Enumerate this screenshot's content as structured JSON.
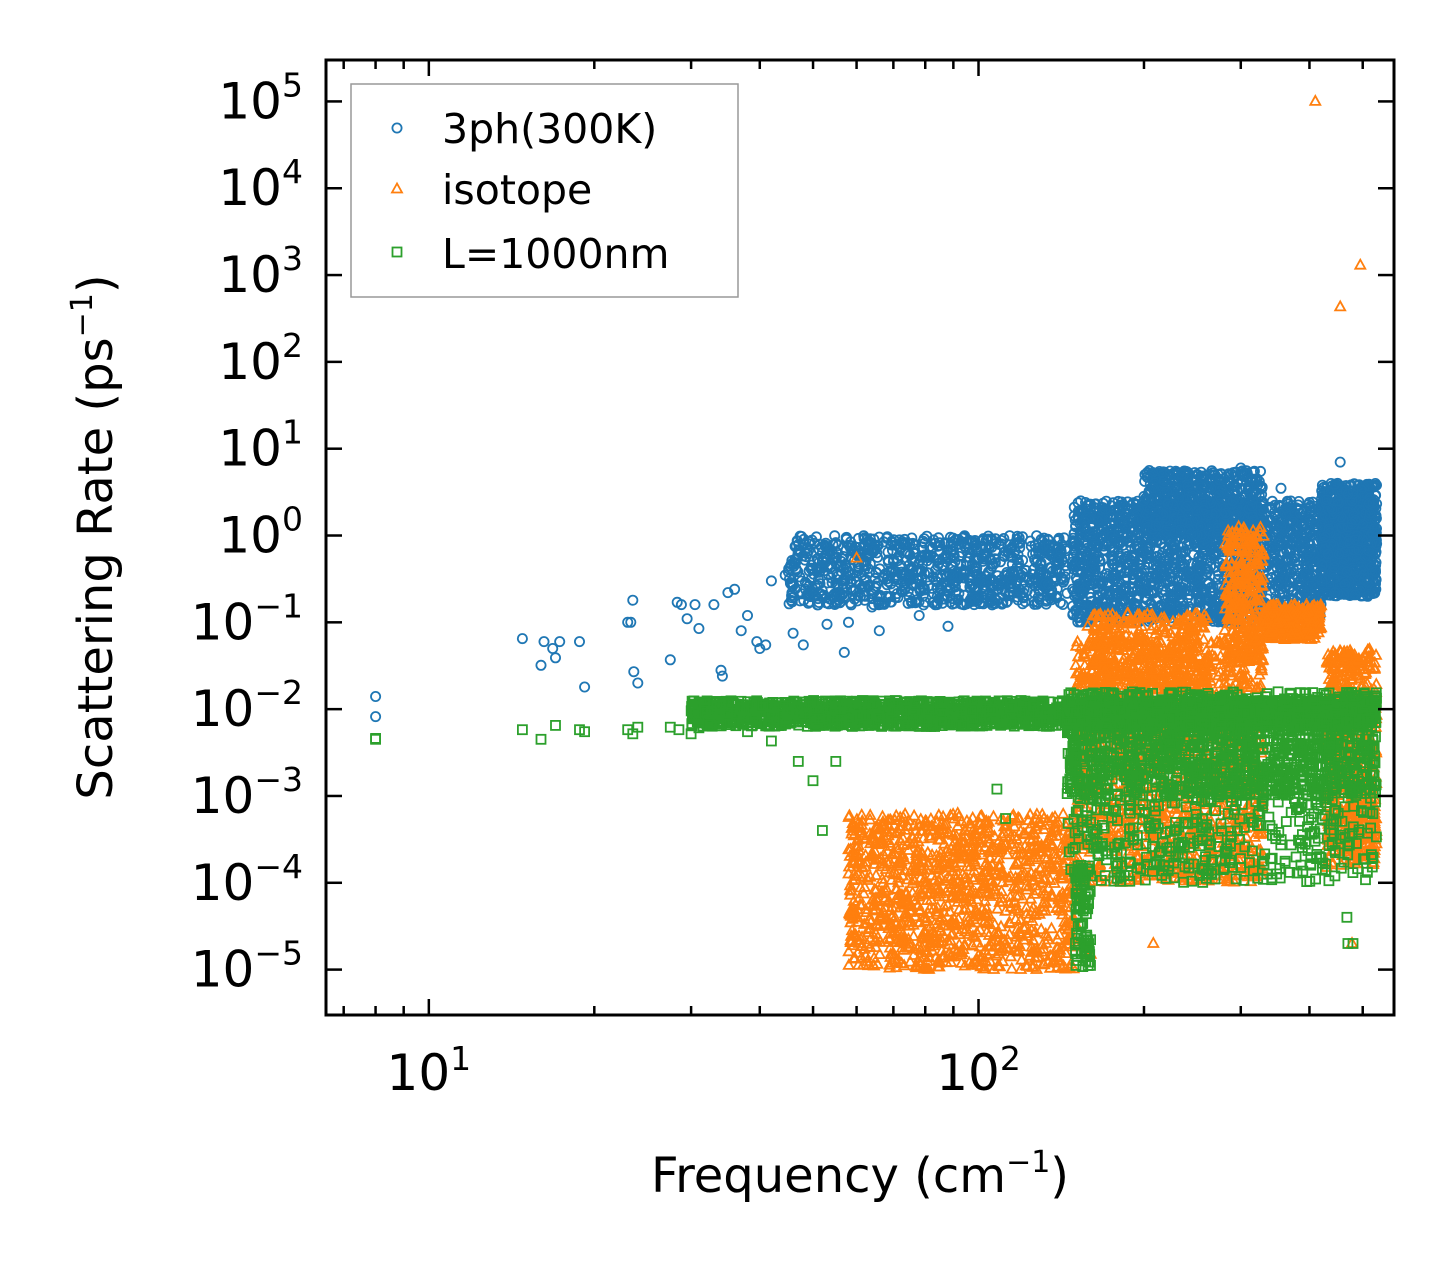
{
  "chart_data": {
    "type": "scatter",
    "xscale": "log",
    "yscale": "log",
    "xlim": [
      6.5,
      570
    ],
    "ylim": [
      3e-06,
      300000
    ],
    "xlabel": "Frequency (cm",
    "xlabel_sup": "−1",
    "xlabel_end": ")",
    "ylabel": "Scattering Rate (ps",
    "ylabel_sup": "−1",
    "ylabel_end": ")",
    "x_major_ticks": [
      {
        "value": 10,
        "base": "10",
        "exp": "1"
      },
      {
        "value": 100,
        "base": "10",
        "exp": "2"
      }
    ],
    "y_major_ticks": [
      {
        "value": 100000.0,
        "base": "10",
        "exp": "5"
      },
      {
        "value": 10000.0,
        "base": "10",
        "exp": "4"
      },
      {
        "value": 1000.0,
        "base": "10",
        "exp": "3"
      },
      {
        "value": 100.0,
        "base": "10",
        "exp": "2"
      },
      {
        "value": 10.0,
        "base": "10",
        "exp": "1"
      },
      {
        "value": 1.0,
        "base": "10",
        "exp": "0"
      },
      {
        "value": 0.1,
        "base": "10",
        "exp": "−1"
      },
      {
        "value": 0.01,
        "base": "10",
        "exp": "−2"
      },
      {
        "value": 0.001,
        "base": "10",
        "exp": "−3"
      },
      {
        "value": 0.0001,
        "base": "10",
        "exp": "−4"
      },
      {
        "value": 1e-05,
        "base": "10",
        "exp": "−5"
      }
    ],
    "legend_position": "top-left",
    "series": [
      {
        "name": "3ph(300K)",
        "color": "#1f77b4",
        "marker": "circle",
        "points": [
          [
            8.0,
            0.014
          ],
          [
            8.0,
            0.0082
          ],
          [
            14.8,
            0.065
          ],
          [
            16.0,
            0.032
          ],
          [
            16.2,
            0.06
          ],
          [
            16.8,
            0.05
          ],
          [
            17.0,
            0.039
          ],
          [
            17.3,
            0.06
          ],
          [
            18.8,
            0.06
          ],
          [
            19.2,
            0.018
          ],
          [
            23.0,
            0.1
          ],
          [
            23.3,
            0.1
          ],
          [
            23.5,
            0.18
          ],
          [
            23.6,
            0.027
          ],
          [
            24.0,
            0.02
          ],
          [
            27.5,
            0.037
          ],
          [
            28.3,
            0.17
          ],
          [
            28.8,
            0.16
          ],
          [
            29.5,
            0.11
          ],
          [
            30.5,
            0.16
          ],
          [
            31.0,
            0.085
          ],
          [
            33.0,
            0.16
          ],
          [
            34.0,
            0.028
          ],
          [
            34.2,
            0.024
          ],
          [
            35.0,
            0.22
          ],
          [
            36.0,
            0.24
          ],
          [
            37.0,
            0.08
          ],
          [
            38.0,
            0.12
          ],
          [
            39.5,
            0.06
          ],
          [
            40.0,
            0.05
          ],
          [
            41.0,
            0.055
          ],
          [
            42.0,
            0.3
          ],
          [
            44.5,
            0.35
          ],
          [
            46.0,
            0.075
          ],
          [
            48.0,
            0.055
          ],
          [
            50.0,
            0.2
          ],
          [
            52.0,
            0.5
          ],
          [
            53.0,
            0.095
          ],
          [
            55.0,
            0.28
          ],
          [
            57.0,
            0.045
          ],
          [
            58.0,
            0.1
          ],
          [
            60.0,
            0.6
          ],
          [
            62.0,
            0.3
          ],
          [
            64.0,
            0.15
          ],
          [
            66.0,
            0.08
          ],
          [
            68.0,
            0.2
          ],
          [
            70.0,
            0.5
          ],
          [
            72.0,
            0.7
          ],
          [
            75.0,
            0.4
          ],
          [
            78.0,
            0.12
          ],
          [
            80.0,
            0.6
          ],
          [
            84.0,
            0.25
          ],
          [
            88.0,
            0.09
          ],
          [
            92.0,
            0.9
          ],
          [
            95.0,
            0.45
          ],
          [
            100.0,
            0.35
          ],
          [
            105.0,
            0.2
          ],
          [
            110.0,
            0.8
          ],
          [
            118.0,
            0.6
          ],
          [
            125.0,
            0.3
          ],
          [
            130.0,
            0.9
          ],
          [
            140.0,
            0.55
          ],
          [
            150.0,
            1.5
          ],
          [
            160.0,
            0.4
          ],
          [
            170.0,
            2.0
          ],
          [
            180.0,
            1.1
          ],
          [
            190.0,
            0.5
          ],
          [
            200.0,
            2.5
          ],
          [
            210.0,
            1.3
          ],
          [
            220.0,
            3.2
          ],
          [
            230.0,
            0.6
          ],
          [
            240.0,
            2.2
          ],
          [
            250.0,
            1.0
          ],
          [
            260.0,
            3.8
          ],
          [
            270.0,
            1.8
          ],
          [
            280.0,
            4.5
          ],
          [
            290.0,
            2.5
          ],
          [
            300.0,
            6.0
          ],
          [
            310.0,
            1.2
          ],
          [
            320.0,
            3.0
          ],
          [
            330.0,
            2.0
          ],
          [
            340.0,
            1.5
          ],
          [
            355.0,
            3.5
          ],
          [
            370.0,
            2.5
          ],
          [
            385.0,
            1.8
          ],
          [
            400.0,
            0.6
          ],
          [
            420.0,
            0.4
          ],
          [
            440.0,
            2.0
          ],
          [
            455.0,
            7.0
          ],
          [
            470.0,
            3.0
          ],
          [
            485.0,
            1.5
          ],
          [
            500.0,
            0.9
          ],
          [
            515.0,
            1.8
          ],
          [
            525.0,
            1.2
          ],
          [
            530.0,
            0.8
          ]
        ],
        "clusters": [
          {
            "x": [
              45,
              145
            ],
            "ylog": [
              -0.8,
              0.0
            ],
            "n": 900
          },
          {
            "x": [
              148,
              420
            ],
            "ylog": [
              -1.0,
              0.4
            ],
            "n": 1800
          },
          {
            "x": [
              200,
              330
            ],
            "ylog": [
              0.0,
              0.75
            ],
            "n": 600
          },
          {
            "x": [
              420,
              530
            ],
            "ylog": [
              -0.7,
              0.6
            ],
            "n": 900
          }
        ]
      },
      {
        "name": "isotope",
        "color": "#ff7f0e",
        "marker": "triangle",
        "points": [
          [
            60.0,
            0.55
          ],
          [
            158.0,
            0.09
          ],
          [
            410.0,
            100000
          ],
          [
            455.0,
            430
          ],
          [
            495.0,
            1300
          ],
          [
            478.0,
            2e-05
          ],
          [
            430.0,
            0.00015
          ],
          [
            208.0,
            2e-05
          ],
          [
            160.0,
            1.5e-05
          ]
        ],
        "clusters": [
          {
            "x": [
              58,
              150
            ],
            "ylog": [
              -5.0,
              -3.2
            ],
            "n": 1200
          },
          {
            "x": [
              150,
              330
            ],
            "ylog": [
              -4.0,
              -1.2
            ],
            "n": 1400
          },
          {
            "x": [
              160,
              260
            ],
            "ylog": [
              -1.8,
              -0.9
            ],
            "n": 400
          },
          {
            "x": [
              280,
              330
            ],
            "ylog": [
              -1.5,
              0.1
            ],
            "n": 300
          },
          {
            "x": [
              330,
              420
            ],
            "ylog": [
              -1.2,
              -0.8
            ],
            "n": 300
          },
          {
            "x": [
              430,
              530
            ],
            "ylog": [
              -3.8,
              -1.3
            ],
            "n": 600
          }
        ]
      },
      {
        "name": "L=1000nm",
        "color": "#2ca02c",
        "marker": "square",
        "points": [
          [
            8.0,
            0.0046
          ],
          [
            8.0,
            0.0045
          ],
          [
            14.8,
            0.0058
          ],
          [
            16.0,
            0.0045
          ],
          [
            17.0,
            0.0065
          ],
          [
            18.8,
            0.0058
          ],
          [
            19.2,
            0.0055
          ],
          [
            23.0,
            0.0058
          ],
          [
            23.5,
            0.0052
          ],
          [
            24.0,
            0.0062
          ],
          [
            27.5,
            0.0062
          ],
          [
            28.5,
            0.0058
          ],
          [
            30.0,
            0.0052
          ],
          [
            31.0,
            0.0061
          ],
          [
            35.0,
            0.0085
          ],
          [
            38.0,
            0.0055
          ],
          [
            42.0,
            0.0043
          ],
          [
            47.0,
            0.0025
          ],
          [
            50.0,
            0.0015
          ],
          [
            52.0,
            0.0004
          ],
          [
            55.0,
            0.0025
          ],
          [
            112.0,
            0.00055
          ],
          [
            108.0,
            0.0012
          ],
          [
            160.0,
            0.00012
          ],
          [
            220.0,
            0.00025
          ],
          [
            300.0,
            0.00015
          ],
          [
            468.0,
            4e-05
          ],
          [
            470.0,
            2e-05
          ],
          [
            480.0,
            2e-05
          ],
          [
            445.0,
            0.00012
          ]
        ],
        "clusters": [
          {
            "x": [
              30,
              530
            ],
            "ylog": [
              -2.2,
              -1.9
            ],
            "n": 2200
          },
          {
            "x": [
              145,
              530
            ],
            "ylog": [
              -3.0,
              -1.8
            ],
            "n": 1600
          },
          {
            "x": [
              145,
              530
            ],
            "ylog": [
              -4.0,
              -3.0
            ],
            "n": 400
          },
          {
            "x": [
              150,
              160
            ],
            "ylog": [
              -5.0,
              -3.8
            ],
            "n": 90
          }
        ]
      }
    ]
  }
}
